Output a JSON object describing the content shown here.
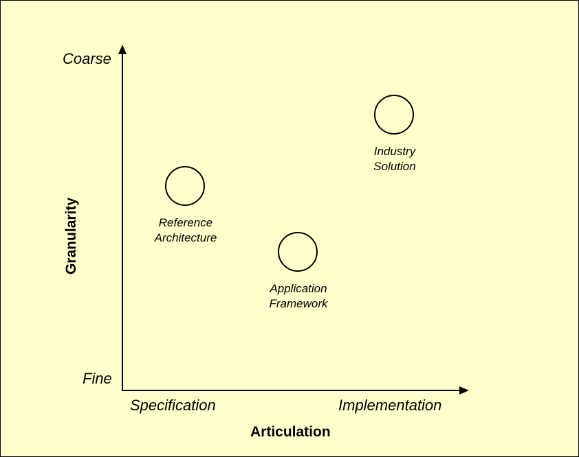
{
  "y_axis": {
    "title": "Granularity",
    "top_label": "Coarse",
    "bottom_label": "Fine"
  },
  "x_axis": {
    "title": "Articulation",
    "left_label": "Specification",
    "right_label": "Implementation"
  },
  "nodes": [
    {
      "line1": "Reference",
      "line2": "Architecture"
    },
    {
      "line1": "Application",
      "line2": "Framework"
    },
    {
      "line1": "Industry",
      "line2": "Solution"
    }
  ],
  "colors": {
    "background": "#ffffcc",
    "stroke": "#000000"
  }
}
